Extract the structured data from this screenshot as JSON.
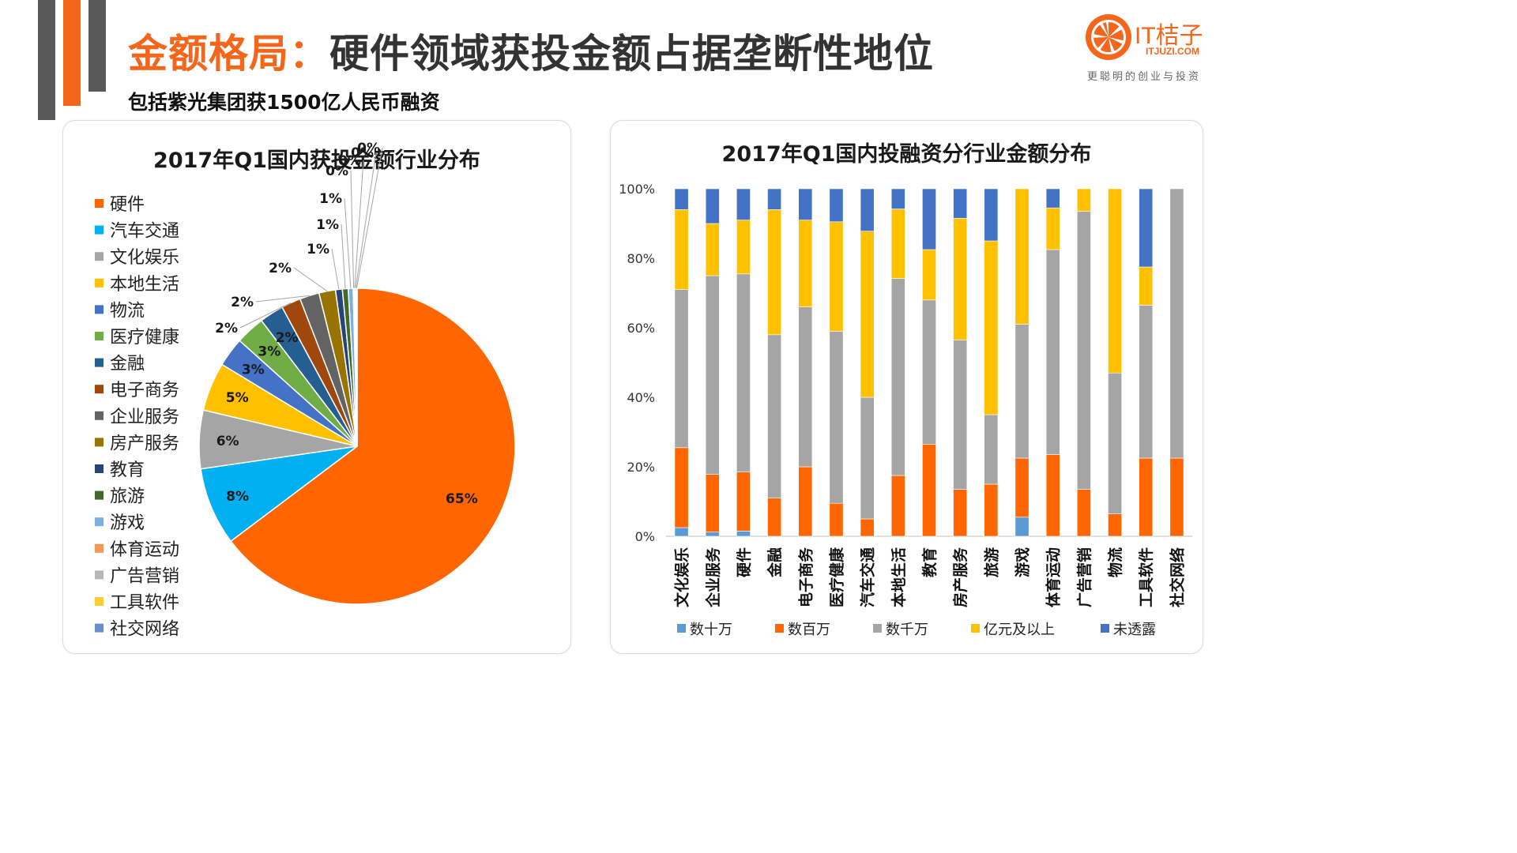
{
  "header": {
    "title_accent": "金额格局：",
    "title_main": "硬件领域获投金额占据垄断性地位",
    "subtitle": "包括紫光集团获1500亿人民币融资"
  },
  "logo": {
    "brand": "IT桔子",
    "url": "ITJUZI.COM",
    "tagline": "更聪明的创业与投资"
  },
  "colors": {
    "brand": "#f4661b",
    "deco_gray": "#595959"
  },
  "chart_data": [
    {
      "type": "pie",
      "title": "2017年Q1国内获投金额行业分布",
      "legend_position": "left",
      "slices": [
        {
          "label": "硬件",
          "value": 65,
          "display": "65%",
          "color": "#ff6600"
        },
        {
          "label": "汽车交通",
          "value": 8,
          "display": "8%",
          "color": "#00b0f0"
        },
        {
          "label": "文化娱乐",
          "value": 6,
          "display": "6%",
          "color": "#a5a5a5"
        },
        {
          "label": "本地生活",
          "value": 5,
          "display": "5%",
          "color": "#ffc000"
        },
        {
          "label": "物流",
          "value": 3,
          "display": "3%",
          "color": "#4472c4"
        },
        {
          "label": "医疗健康",
          "value": 3,
          "display": "3%",
          "color": "#70ad47"
        },
        {
          "label": "金融",
          "value": 2.5,
          "display": "2%",
          "color": "#255e91"
        },
        {
          "label": "电子商务",
          "value": 2,
          "display": "2%",
          "color": "#9e480e"
        },
        {
          "label": "企业服务",
          "value": 2,
          "display": "2%",
          "color": "#636363"
        },
        {
          "label": "房产服务",
          "value": 1.7,
          "display": "2%",
          "color": "#997300"
        },
        {
          "label": "教育",
          "value": 0.7,
          "display": "1%",
          "color": "#264478"
        },
        {
          "label": "旅游",
          "value": 0.6,
          "display": "1%",
          "color": "#43682b"
        },
        {
          "label": "游戏",
          "value": 0.5,
          "display": "1%",
          "color": "#7cafdd"
        },
        {
          "label": "体育运动",
          "value": 0.1,
          "display": "0%",
          "color": "#f1975a"
        },
        {
          "label": "广告营销",
          "value": 0.1,
          "display": "0%",
          "color": "#b7b7b7"
        },
        {
          "label": "工具软件",
          "value": 0.1,
          "display": "0%",
          "color": "#ffcd33"
        },
        {
          "label": "社交网络",
          "value": 0.1,
          "display": "0%",
          "color": "#698ed0"
        }
      ]
    },
    {
      "type": "bar",
      "stacked": true,
      "percent": true,
      "title": "2017年Q1国内投融资分行业金额分布",
      "legend_position": "bottom",
      "y_ticks": [
        "0%",
        "20%",
        "40%",
        "60%",
        "80%",
        "100%"
      ],
      "ylim": [
        0,
        100
      ],
      "categories": [
        "文化娱乐",
        "企业服务",
        "硬件",
        "金融",
        "电子商务",
        "医疗健康",
        "汽车交通",
        "本地生活",
        "教育",
        "房产服务",
        "旅游",
        "游戏",
        "体育运动",
        "广告营销",
        "物流",
        "工具软件",
        "社交网络"
      ],
      "series": [
        {
          "name": "数十万",
          "color": "#5b9bd5",
          "values": [
            2.5,
            1.2,
            1.5,
            0,
            0,
            0,
            0,
            0,
            0,
            0,
            0,
            5.5,
            0,
            0,
            0,
            0,
            0
          ]
        },
        {
          "name": "数百万",
          "color": "#ff6600",
          "values": [
            23,
            16.6,
            17,
            11,
            20,
            9.5,
            5,
            17.5,
            26.5,
            13.5,
            15,
            17,
            23.5,
            13.5,
            6.5,
            22.5,
            22.5
          ]
        },
        {
          "name": "数千万",
          "color": "#a5a5a5",
          "values": [
            45.5,
            57.2,
            57,
            47,
            46,
            49.5,
            35,
            56.7,
            41.5,
            43,
            20,
            38.5,
            59,
            80,
            40.5,
            44,
            77.5
          ]
        },
        {
          "name": "亿元及以上",
          "color": "#ffc000",
          "values": [
            23,
            15,
            15.5,
            36,
            25,
            31.5,
            47.8,
            20,
            14.5,
            35,
            50,
            39,
            12,
            6.5,
            53,
            11,
            0
          ]
        },
        {
          "name": "未透露",
          "color": "#4472c4",
          "values": [
            6,
            10,
            9,
            6,
            9,
            9.5,
            12.2,
            5.8,
            17.5,
            8.5,
            15,
            0,
            5.5,
            0,
            0,
            22.5,
            0
          ]
        }
      ]
    }
  ]
}
